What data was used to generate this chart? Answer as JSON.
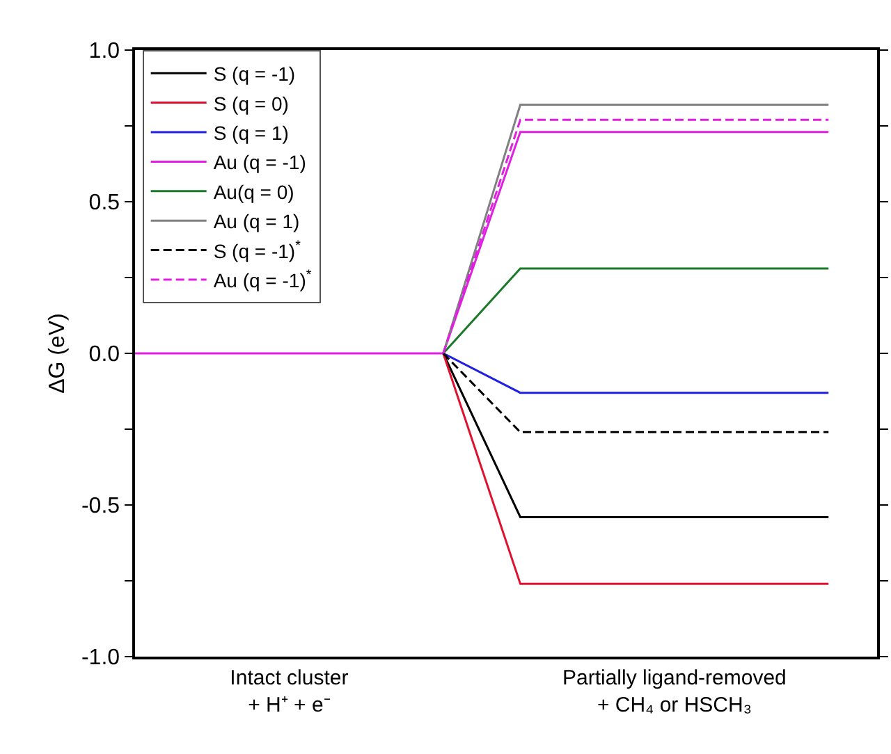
{
  "chart_data": {
    "type": "line",
    "ylabel": "ΔG (eV)",
    "categories": [
      null,
      null,
      "Intact cluster\n+ H⁺ + e⁻",
      null,
      null,
      null,
      null,
      "Partially ligand-removed\n+ CH₄ or HSCH₃",
      null,
      null
    ],
    "ylim": [
      -1.0,
      1.0
    ],
    "yticks": [
      {
        "value": -1.0,
        "label": "-1.0"
      },
      {
        "value": -0.75,
        "label": null
      },
      {
        "value": -0.5,
        "label": "-0.5"
      },
      {
        "value": -0.25,
        "label": null
      },
      {
        "value": 0.0,
        "label": "0.0"
      },
      {
        "value": 0.25,
        "label": null
      },
      {
        "value": 0.5,
        "label": "0.5"
      },
      {
        "value": 0.75,
        "label": null
      },
      {
        "value": 1.0,
        "label": "1.0"
      }
    ],
    "grid": false,
    "legend": "top left",
    "marker": "none",
    "series": [
      {
        "name": "S (q = -1)",
        "color": "#000000",
        "line_style": "solid",
        "values": [
          null,
          null,
          null,
          null,
          0,
          -0.54,
          -0.54,
          -0.54,
          -0.54,
          -0.54
        ]
      },
      {
        "name": "S (q = 0)",
        "color": "#e0102e",
        "line_style": "solid",
        "values": [
          null,
          null,
          null,
          null,
          0,
          -0.76,
          -0.76,
          -0.76,
          -0.76,
          -0.76
        ]
      },
      {
        "name": "S (q = 1)",
        "color": "#2020e0",
        "line_style": "solid",
        "values": [
          null,
          null,
          null,
          null,
          0,
          -0.13,
          -0.13,
          -0.13,
          -0.13,
          -0.13
        ]
      },
      {
        "name": "Au (q = -1)",
        "color": "#e020e0",
        "line_style": "solid",
        "values": [
          0,
          0,
          0,
          0,
          0,
          0.73,
          0.73,
          0.73,
          0.73,
          0.73
        ]
      },
      {
        "name": "Au(q = 0)",
        "color": "#1a7a2a",
        "line_style": "solid",
        "values": [
          null,
          null,
          null,
          null,
          0,
          0.28,
          0.28,
          0.28,
          0.28,
          0.28
        ]
      },
      {
        "name": "Au (q = 1)",
        "color": "#808080",
        "line_style": "solid",
        "values": [
          null,
          null,
          null,
          null,
          0,
          0.82,
          0.82,
          0.82,
          0.82,
          0.82
        ]
      },
      {
        "name": "S (q = -1)$^{*}$",
        "color": "#000000",
        "line_style": "dashed",
        "values": [
          null,
          null,
          null,
          null,
          0,
          -0.26,
          -0.26,
          -0.26,
          -0.26,
          -0.26
        ]
      },
      {
        "name": "Au (q = -1)$^{*}$",
        "color": "#e020e0",
        "line_style": "dashed",
        "values": [
          null,
          null,
          null,
          null,
          0,
          0.77,
          0.77,
          0.77,
          0.77,
          0.77
        ]
      }
    ]
  }
}
